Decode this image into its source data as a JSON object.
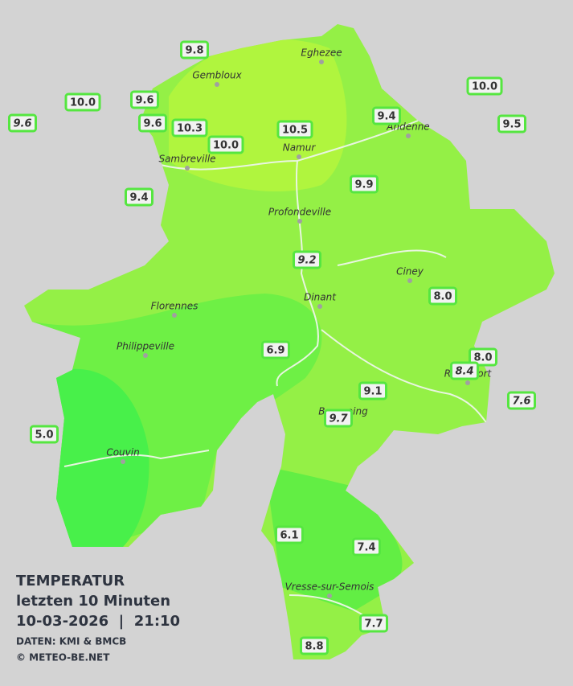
{
  "title": {
    "heading": "TEMPERATUR",
    "period": "letzten 10 Minuten",
    "datetime": "10-03-2026  |  21:10",
    "source": "DATEN: KMI & BMCB",
    "copyright": "© METEO-BE.NET"
  },
  "cities": [
    {
      "name": "Eghezee"
    },
    {
      "name": "Gembloux"
    },
    {
      "name": "Andenne"
    },
    {
      "name": "Namur"
    },
    {
      "name": "Sambreville"
    },
    {
      "name": "Profondeville"
    },
    {
      "name": "Ciney"
    },
    {
      "name": "Dinant"
    },
    {
      "name": "Florennes"
    },
    {
      "name": "Philippeville"
    },
    {
      "name": "Rochefort"
    },
    {
      "name": "Beauraing"
    },
    {
      "name": "Couvin"
    },
    {
      "name": "Vresse-sur-Semois"
    }
  ],
  "stations": [
    {
      "label": "9.8",
      "italic": false
    },
    {
      "label": "10.0",
      "italic": false
    },
    {
      "label": "9.6",
      "italic": false
    },
    {
      "label": "9.6",
      "italic": true
    },
    {
      "label": "9.6",
      "italic": false
    },
    {
      "label": "10.3",
      "italic": false
    },
    {
      "label": "10.5",
      "italic": false
    },
    {
      "label": "10.0",
      "italic": false
    },
    {
      "label": "9.4",
      "italic": false
    },
    {
      "label": "10.0",
      "italic": false
    },
    {
      "label": "9.5",
      "italic": false
    },
    {
      "label": "9.9",
      "italic": false
    },
    {
      "label": "9.4",
      "italic": false
    },
    {
      "label": "9.2",
      "italic": true
    },
    {
      "label": "8.0",
      "italic": false
    },
    {
      "label": "6.9",
      "italic": false
    },
    {
      "label": "8.0",
      "italic": false
    },
    {
      "label": "8.4",
      "italic": true
    },
    {
      "label": "9.1",
      "italic": false
    },
    {
      "label": "7.6",
      "italic": true
    },
    {
      "label": "9.7",
      "italic": true
    },
    {
      "label": "5.0",
      "italic": false
    },
    {
      "label": "6.1",
      "italic": false
    },
    {
      "label": "7.4",
      "italic": false
    },
    {
      "label": "7.7",
      "italic": false
    },
    {
      "label": "8.8",
      "italic": false
    }
  ]
}
